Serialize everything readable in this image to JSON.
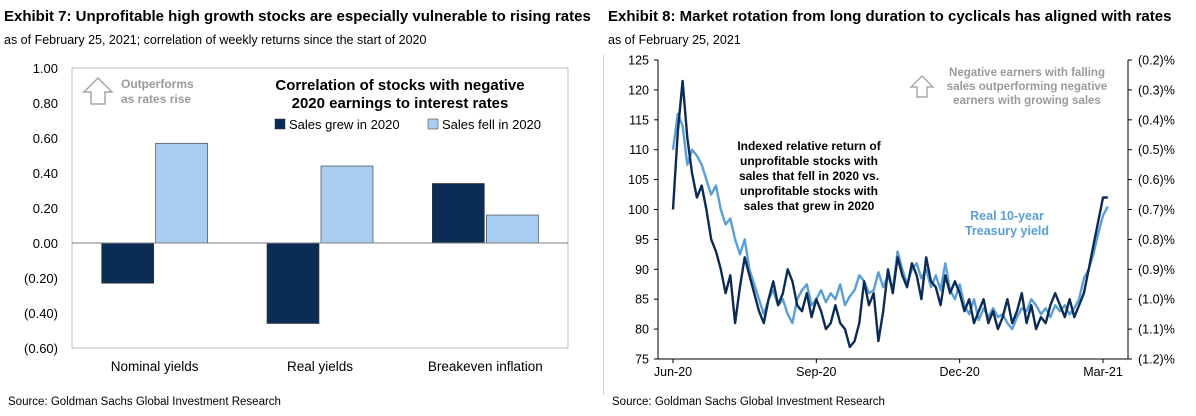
{
  "exhibit7": {
    "title": "Exhibit 7: Unprofitable high growth stocks are especially vulnerable to rising rates",
    "subtitle": "as of February 25, 2021; correlation of weekly returns since the start of 2020",
    "source": "Source: Goldman Sachs Global Investment Research"
  },
  "exhibit8": {
    "title": "Exhibit 8: Market rotation from long duration to cyclicals has aligned with rates",
    "subtitle": "as of February 25, 2021",
    "source": "Source: Goldman Sachs Global Investment Research"
  },
  "colors": {
    "dark_navy": "#0b2c55",
    "light_blue": "#a9cdf0",
    "line_blue": "#5a9fd6",
    "arrow_gray": "#a6a6a6"
  },
  "chart_data": [
    {
      "type": "bar",
      "title": "Correlation of stocks with negative 2020 earnings to interest rates",
      "title_lines": [
        "Correlation of stocks with negative",
        "2020 earnings to interest rates"
      ],
      "annotation_lines": [
        "Outperforms",
        "as rates rise"
      ],
      "annotation_icon": "up-arrow-icon",
      "categories": [
        "Nominal yields",
        "Real yields",
        "Breakeven inflation"
      ],
      "series": [
        {
          "name": "Sales grew in 2020",
          "color": "#0b2c55",
          "values": [
            -0.23,
            -0.46,
            0.34
          ]
        },
        {
          "name": "Sales fell in 2020",
          "color": "#a9cdf0",
          "values": [
            0.57,
            0.44,
            0.16
          ]
        }
      ],
      "ylim": [
        -0.6,
        1.0
      ],
      "yticks": [
        -0.6,
        -0.4,
        -0.2,
        0.0,
        0.2,
        0.4,
        0.6,
        0.8,
        1.0
      ],
      "ytick_labels": [
        "(0.60)",
        "(0.40)",
        "(0.20)",
        "0.00",
        "0.20",
        "0.40",
        "0.60",
        "0.80",
        "1.00"
      ],
      "legend_position": "top-right"
    },
    {
      "type": "line",
      "x_ticks": [
        "Jun-20",
        "Sep-20",
        "Dec-20",
        "Mar-21"
      ],
      "x_tick_positions": [
        0,
        3,
        6,
        9
      ],
      "xlim": [
        0,
        9
      ],
      "y_left": {
        "ylim": [
          75,
          125
        ],
        "ticks": [
          75,
          80,
          85,
          90,
          95,
          100,
          105,
          110,
          115,
          120,
          125
        ]
      },
      "y_right": {
        "ylim": [
          -1.2,
          -0.2
        ],
        "ticks": [
          -1.2,
          -1.1,
          -1.0,
          -0.9,
          -0.8,
          -0.7,
          -0.6,
          -0.5,
          -0.4,
          -0.3,
          -0.2
        ],
        "tick_labels": [
          "(1.2)%",
          "(1.1)%",
          "(1.0)%",
          "(0.9)%",
          "(0.8)%",
          "(0.7)%",
          "(0.6)%",
          "(0.5)%",
          "(0.4)%",
          "(0.3)%",
          "(0.2)%"
        ]
      },
      "annotation_lines": [
        "Negative earners with falling",
        "sales outperforming negative",
        "earners with growing sales"
      ],
      "annotation_icon": "up-arrow-icon",
      "series": [
        {
          "name": "Indexed relative return of unprofitable stocks with sales that fell in 2020 vs. unprofitable stocks with sales that grew in 2020",
          "label_lines": [
            "Indexed relative return of",
            "unprofitable stocks with",
            "sales that fell in 2020 vs.",
            "unprofitable stocks with",
            "sales that grew in 2020"
          ],
          "axis": "left",
          "color": "#0b2c55",
          "x": [
            0.0,
            0.1,
            0.2,
            0.3,
            0.4,
            0.5,
            0.6,
            0.7,
            0.8,
            0.9,
            1.0,
            1.1,
            1.2,
            1.3,
            1.4,
            1.5,
            1.6,
            1.7,
            1.8,
            1.9,
            2.0,
            2.1,
            2.2,
            2.3,
            2.4,
            2.5,
            2.6,
            2.7,
            2.8,
            2.9,
            3.0,
            3.1,
            3.2,
            3.3,
            3.4,
            3.5,
            3.6,
            3.7,
            3.8,
            3.9,
            4.0,
            4.1,
            4.2,
            4.3,
            4.4,
            4.5,
            4.6,
            4.7,
            4.8,
            4.9,
            5.0,
            5.1,
            5.2,
            5.3,
            5.4,
            5.5,
            5.6,
            5.7,
            5.8,
            5.9,
            6.0,
            6.1,
            6.2,
            6.3,
            6.4,
            6.5,
            6.6,
            6.7,
            6.8,
            6.9,
            7.0,
            7.1,
            7.2,
            7.3,
            7.4,
            7.5,
            7.6,
            7.7,
            7.8,
            7.9,
            8.0,
            8.1,
            8.2,
            8.3,
            8.4,
            8.5,
            8.6,
            8.7,
            8.8,
            8.9,
            9.0,
            9.1
          ],
          "values": [
            100,
            113,
            121.5,
            112,
            106,
            102,
            104,
            100,
            95,
            93,
            90,
            86,
            89,
            81,
            87,
            92,
            89,
            86,
            83,
            81,
            85,
            88,
            84,
            86,
            90,
            88,
            84,
            83,
            86,
            82,
            85,
            83,
            80,
            81,
            84,
            81,
            80,
            77,
            78,
            81,
            88,
            84,
            86,
            78,
            83,
            90,
            86,
            92,
            89,
            87,
            91,
            89,
            85,
            92,
            88,
            87,
            84,
            89,
            86,
            88,
            86,
            83,
            85,
            81,
            83,
            85,
            81,
            83,
            80,
            82,
            85,
            81,
            83,
            86,
            81,
            84,
            80,
            82,
            81,
            84,
            86,
            84,
            82,
            85,
            82,
            84,
            86,
            90,
            94,
            98,
            102,
            102
          ]
        },
        {
          "name": "Real 10-year Treasury yield",
          "label_lines": [
            "Real 10-year",
            "Treasury yield"
          ],
          "axis": "right",
          "color": "#5a9fd6",
          "x": [
            0.0,
            0.1,
            0.2,
            0.3,
            0.4,
            0.5,
            0.6,
            0.7,
            0.8,
            0.9,
            1.0,
            1.1,
            1.2,
            1.3,
            1.4,
            1.5,
            1.6,
            1.7,
            1.8,
            1.9,
            2.0,
            2.1,
            2.2,
            2.3,
            2.4,
            2.5,
            2.6,
            2.7,
            2.8,
            2.9,
            3.0,
            3.1,
            3.2,
            3.3,
            3.4,
            3.5,
            3.6,
            3.7,
            3.8,
            3.9,
            4.0,
            4.1,
            4.2,
            4.3,
            4.4,
            4.5,
            4.6,
            4.7,
            4.8,
            4.9,
            5.0,
            5.1,
            5.2,
            5.3,
            5.4,
            5.5,
            5.6,
            5.7,
            5.8,
            5.9,
            6.0,
            6.1,
            6.2,
            6.3,
            6.4,
            6.5,
            6.6,
            6.7,
            6.8,
            6.9,
            7.0,
            7.1,
            7.2,
            7.3,
            7.4,
            7.5,
            7.6,
            7.7,
            7.8,
            7.9,
            8.0,
            8.1,
            8.2,
            8.3,
            8.4,
            8.5,
            8.6,
            8.7,
            8.8,
            8.9,
            9.0,
            9.1
          ],
          "values": [
            -0.5,
            -0.38,
            -0.42,
            -0.55,
            -0.5,
            -0.52,
            -0.55,
            -0.6,
            -0.65,
            -0.62,
            -0.7,
            -0.75,
            -0.73,
            -0.8,
            -0.85,
            -0.8,
            -0.9,
            -0.95,
            -1.0,
            -1.05,
            -1.0,
            -0.97,
            -1.02,
            -1.0,
            -1.05,
            -1.08,
            -1.0,
            -0.97,
            -0.95,
            -1.02,
            -1.0,
            -0.97,
            -1.01,
            -0.98,
            -1.0,
            -0.95,
            -1.02,
            -0.99,
            -0.97,
            -0.92,
            -0.94,
            -0.98,
            -0.97,
            -0.91,
            -0.96,
            -0.92,
            -0.97,
            -0.84,
            -0.9,
            -0.95,
            -0.9,
            -0.88,
            -0.93,
            -0.9,
            -0.96,
            -0.92,
            -0.97,
            -0.88,
            -0.97,
            -1.0,
            -0.95,
            -1.02,
            -1.05,
            -1.0,
            -1.07,
            -1.03,
            -1.06,
            -1.03,
            -1.06,
            -1.05,
            -1.08,
            -1.1,
            -1.06,
            -1.03,
            -1.04,
            -1.0,
            -1.02,
            -1.05,
            -1.03,
            -1.06,
            -1.02,
            -1.04,
            -1.02,
            -1.05,
            -1.03,
            -1.0,
            -0.93,
            -0.9,
            -0.85,
            -0.78,
            -0.72,
            -0.69
          ]
        }
      ]
    }
  ]
}
